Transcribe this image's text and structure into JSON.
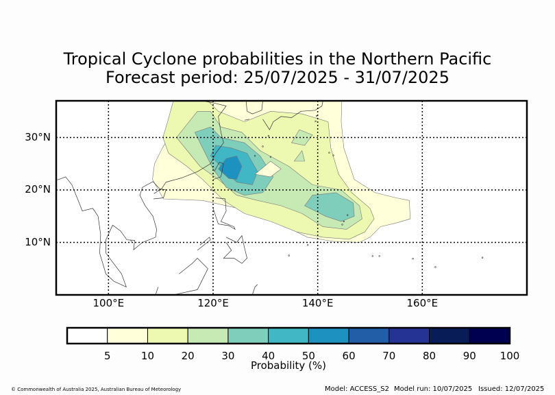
{
  "title_line1": "Tropical Cyclone probabilities in the Northern Pacific",
  "title_line2": "Forecast period: 25/07/2025 - 31/07/2025",
  "chart_data": {
    "type": "heatmap",
    "x_axis": {
      "ticks": [
        "100°E",
        "120°E",
        "140°E",
        "160°E"
      ],
      "lim": [
        90,
        180
      ],
      "unit": "degrees east"
    },
    "y_axis": {
      "ticks": [
        "10°N",
        "20°N",
        "30°N"
      ],
      "lim": [
        0,
        37
      ],
      "unit": "degrees north"
    },
    "grid": true,
    "colorbar": {
      "label": "Probability (%)",
      "levels": [
        0,
        5,
        10,
        20,
        30,
        40,
        50,
        60,
        70,
        80,
        90,
        100
      ],
      "tick_labels": [
        "5",
        "10",
        "20",
        "30",
        "40",
        "50",
        "60",
        "70",
        "80",
        "90",
        "100"
      ],
      "colors": [
        "#ffffff",
        "#ffffd9",
        "#edf8b1",
        "#c7e9b4",
        "#7fcdbb",
        "#41b6c4",
        "#1d91c0",
        "#225ea8",
        "#253494",
        "#081d58",
        "#000050"
      ]
    },
    "contours": [
      {
        "level_min": 5,
        "color": "#ffffd9",
        "lonlat": [
          [
            114.3,
            37.0
          ],
          [
            113.4,
            33.0
          ],
          [
            110.3,
            28.0
          ],
          [
            108.8,
            25.0
          ],
          [
            108.4,
            22.0
          ],
          [
            110.5,
            18.3
          ],
          [
            118.0,
            18.0
          ],
          [
            127.0,
            16.0
          ],
          [
            132.0,
            14.0
          ],
          [
            138.0,
            11.0
          ],
          [
            143.0,
            10.2
          ],
          [
            148.0,
            10.0
          ],
          [
            150.0,
            11.0
          ],
          [
            152.0,
            13.0
          ],
          [
            155.0,
            13.7
          ],
          [
            157.7,
            14.5
          ],
          [
            157.5,
            18.0
          ],
          [
            155.0,
            18.5
          ],
          [
            151.0,
            19.5
          ],
          [
            147.0,
            22.0
          ],
          [
            145.0,
            28.0
          ],
          [
            144.5,
            33.0
          ],
          [
            144.6,
            37.0
          ]
        ]
      },
      {
        "level_min": 10,
        "color": "#edf8b1",
        "lonlat": [
          [
            112.4,
            37.0
          ],
          [
            111.3,
            33.0
          ],
          [
            110.4,
            30.0
          ],
          [
            111.5,
            27.0
          ],
          [
            115.0,
            24.5
          ],
          [
            118.0,
            22.0
          ],
          [
            122.0,
            18.0
          ],
          [
            126.0,
            15.5
          ],
          [
            131.0,
            14.0
          ],
          [
            136.0,
            12.0
          ],
          [
            141.0,
            11.0
          ],
          [
            146.0,
            10.6
          ],
          [
            149.0,
            12.0
          ],
          [
            150.8,
            14.5
          ],
          [
            150.0,
            16.5
          ],
          [
            146.5,
            19.5
          ],
          [
            144.0,
            23.0
          ],
          [
            142.5,
            28.0
          ],
          [
            142.0,
            33.0
          ],
          [
            137.0,
            34.5
          ],
          [
            131.0,
            35.0
          ],
          [
            126.0,
            33.0
          ],
          [
            121.0,
            35.0
          ],
          [
            119.0,
            37.0
          ]
        ]
      },
      {
        "level_min": 20,
        "color": "#c7e9b4",
        "lonlat": [
          [
            117.0,
            35.0
          ],
          [
            113.0,
            30.0
          ],
          [
            117.5,
            24.5
          ],
          [
            121.0,
            22.0
          ],
          [
            124.5,
            19.0
          ],
          [
            128.5,
            18.0
          ],
          [
            133.0,
            17.0
          ],
          [
            137.0,
            15.5
          ],
          [
            141.0,
            13.0
          ],
          [
            145.5,
            12.5
          ],
          [
            148.5,
            14.5
          ],
          [
            148.0,
            17.0
          ],
          [
            144.5,
            20.0
          ],
          [
            139.0,
            21.0
          ],
          [
            134.5,
            24.5
          ],
          [
            129.0,
            27.5
          ],
          [
            125.5,
            31.0
          ],
          [
            121.5,
            32.0
          ],
          [
            119.5,
            35.0
          ]
        ]
      },
      {
        "level_min": 30,
        "color": "#7fcdbb",
        "lonlat": [
          [
            116.5,
            31.0
          ],
          [
            118.5,
            27.0
          ],
          [
            120.0,
            24.0
          ],
          [
            122.5,
            20.5
          ],
          [
            126.0,
            19.0
          ],
          [
            129.5,
            19.5
          ],
          [
            131.5,
            22.5
          ],
          [
            129.0,
            26.5
          ],
          [
            126.0,
            29.0
          ],
          [
            121.5,
            30.0
          ],
          [
            119.5,
            32.0
          ]
        ]
      },
      {
        "level_min": 30,
        "color": "#7fcdbb",
        "lonlat": [
          [
            137.5,
            17.0
          ],
          [
            141.5,
            15.0
          ],
          [
            144.5,
            14.0
          ],
          [
            147.0,
            15.0
          ],
          [
            146.8,
            17.5
          ],
          [
            143.5,
            19.5
          ],
          [
            139.0,
            19.0
          ]
        ]
      },
      {
        "level_min": 40,
        "color": "#41b6c4",
        "lonlat": [
          [
            119.5,
            26.5
          ],
          [
            122.0,
            24.0
          ],
          [
            124.5,
            21.5
          ],
          [
            127.5,
            21.0
          ],
          [
            128.5,
            23.5
          ],
          [
            126.5,
            27.0
          ],
          [
            123.5,
            28.0
          ],
          [
            120.5,
            28.5
          ]
        ]
      },
      {
        "level_min": 50,
        "color": "#1d91c0",
        "lonlat": [
          [
            121.0,
            24.0
          ],
          [
            123.0,
            22.2
          ],
          [
            124.5,
            22.0
          ],
          [
            125.5,
            24.5
          ],
          [
            124.5,
            26.5
          ],
          [
            122.5,
            26.0
          ]
        ]
      },
      {
        "level_min": 5,
        "color": "#ffffd9",
        "lonlat": [
          [
            128.0,
            23.0
          ],
          [
            131.0,
            22.5
          ],
          [
            133.0,
            24.0
          ],
          [
            131.0,
            25.5
          ]
        ]
      },
      {
        "level_min": 20,
        "color": "#c7e9b4",
        "lonlat": [
          [
            135.5,
            25.5
          ],
          [
            137.5,
            25.5
          ],
          [
            137.0,
            27.5
          ]
        ]
      },
      {
        "level_min": 20,
        "color": "#c7e9b4",
        "lonlat": [
          [
            135.0,
            29.0
          ],
          [
            137.5,
            28.5
          ],
          [
            139.0,
            30.5
          ],
          [
            136.5,
            31.5
          ]
        ]
      }
    ],
    "coastlines": [
      [
        [
          118.0,
          37.0
        ],
        [
          120.5,
          36.5
        ],
        [
          122.5,
          36.0
        ],
        [
          121.0,
          34.0
        ],
        [
          121.5,
          31.0
        ],
        [
          122.0,
          29.0
        ],
        [
          120.5,
          27.0
        ],
        [
          119.5,
          25.0
        ],
        [
          117.0,
          23.5
        ],
        [
          114.0,
          22.3
        ],
        [
          111.0,
          21.5
        ],
        [
          110.0,
          20.0
        ],
        [
          108.5,
          21.6
        ],
        [
          106.5,
          20.5
        ],
        [
          106.0,
          19.0
        ],
        [
          107.0,
          17.0
        ],
        [
          108.5,
          15.0
        ],
        [
          109.2,
          12.5
        ],
        [
          109.0,
          11.0
        ],
        [
          106.5,
          10.0
        ],
        [
          104.8,
          8.6
        ],
        [
          105.0,
          10.4
        ],
        [
          103.5,
          10.5
        ],
        [
          102.3,
          12.2
        ],
        [
          100.8,
          13.3
        ],
        [
          99.5,
          10.5
        ],
        [
          99.5,
          8.0
        ],
        [
          100.6,
          6.5
        ],
        [
          102.5,
          4.0
        ],
        [
          103.4,
          1.5
        ],
        [
          101.0,
          2.6
        ],
        [
          99.5,
          4.0
        ],
        [
          98.3,
          8.0
        ],
        [
          98.5,
          11.5
        ],
        [
          98.0,
          15.0
        ],
        [
          97.0,
          16.5
        ],
        [
          95.0,
          16.0
        ],
        [
          94.2,
          18.0
        ],
        [
          93.0,
          21.0
        ],
        [
          91.8,
          22.5
        ],
        [
          90.5,
          22.0
        ],
        [
          90.0,
          21.9
        ]
      ],
      [
        [
          120.0,
          22.0
        ],
        [
          121.5,
          22.5
        ],
        [
          122.0,
          25.0
        ],
        [
          121.2,
          25.3
        ],
        [
          120.2,
          23.5
        ]
      ],
      [
        [
          108.6,
          18.3
        ],
        [
          110.5,
          18.5
        ],
        [
          111.0,
          20.0
        ],
        [
          110.0,
          20.2
        ],
        [
          108.7,
          19.3
        ]
      ],
      [
        [
          120.5,
          18.5
        ],
        [
          122.3,
          18.3
        ],
        [
          122.5,
          16.0
        ],
        [
          121.5,
          14.0
        ],
        [
          124.0,
          13.0
        ],
        [
          124.2,
          12.5
        ],
        [
          123.0,
          13.2
        ],
        [
          121.0,
          13.5
        ],
        [
          120.5,
          15.0
        ],
        [
          120.0,
          16.5
        ]
      ],
      [
        [
          122.5,
          11.0
        ],
        [
          124.5,
          10.0
        ],
        [
          125.5,
          11.3
        ],
        [
          126.0,
          9.0
        ],
        [
          126.5,
          7.0
        ],
        [
          125.5,
          6.0
        ],
        [
          124.0,
          7.0
        ],
        [
          122.0,
          7.0
        ],
        [
          123.5,
          8.5
        ],
        [
          122.5,
          10.0
        ]
      ],
      [
        [
          117.0,
          8.5
        ],
        [
          119.5,
          10.5
        ],
        [
          119.3,
          11.0
        ],
        [
          117.5,
          9.5
        ]
      ],
      [
        [
          109.5,
          1.5
        ],
        [
          109.0,
          0.0
        ],
        [
          110.0,
          -0.5
        ],
        [
          117.0,
          1.0
        ],
        [
          119.0,
          5.0
        ],
        [
          117.0,
          7.0
        ],
        [
          116.0,
          6.0
        ],
        [
          113.5,
          4.0
        ]
      ],
      [
        [
          127.5,
          0.0
        ],
        [
          128.0,
          1.5
        ],
        [
          128.5,
          2.0
        ]
      ],
      [
        [
          129.5,
          33.5
        ],
        [
          130.8,
          31.5
        ],
        [
          131.5,
          33.0
        ],
        [
          133.0,
          34.0
        ],
        [
          135.0,
          33.8
        ],
        [
          136.8,
          35.0
        ],
        [
          139.5,
          35.2
        ],
        [
          140.8,
          36.0
        ],
        [
          141.0,
          37.0
        ]
      ],
      [
        [
          126.3,
          37.0
        ],
        [
          126.5,
          35.0
        ],
        [
          127.5,
          34.5
        ],
        [
          129.3,
          35.2
        ],
        [
          129.5,
          37.0
        ]
      ],
      [
        [
          126.0,
          33.3
        ],
        [
          126.9,
          33.5
        ]
      ],
      [
        [
          104.2,
          10.5
        ],
        [
          104.5,
          10.0
        ]
      ]
    ],
    "islands": [
      [
        145.7,
        15.2
      ],
      [
        145.0,
        14.0
      ],
      [
        144.7,
        13.4
      ],
      [
        134.5,
        7.5
      ],
      [
        138.1,
        9.5
      ],
      [
        158.2,
        6.9
      ],
      [
        162.5,
        5.3
      ],
      [
        171.5,
        7.1
      ],
      [
        150.5,
        7.4
      ],
      [
        151.8,
        7.4
      ],
      [
        143.0,
        26.6
      ],
      [
        142.2,
        27.1
      ],
      [
        131.0,
        26.3
      ],
      [
        128.0,
        26.5
      ],
      [
        129.5,
        28.3
      ],
      [
        130.6,
        30.3
      ],
      [
        139.6,
        33.1
      ],
      [
        139.8,
        34.1
      ]
    ],
    "footer": {
      "copyright": "© Commonwealth of Australia 2025, Australian Bureau of Meteorology",
      "model": "Model: ACCESS_S2",
      "model_run": "Model run: 10/07/2025",
      "issued": "Issued: 12/07/2025"
    }
  }
}
